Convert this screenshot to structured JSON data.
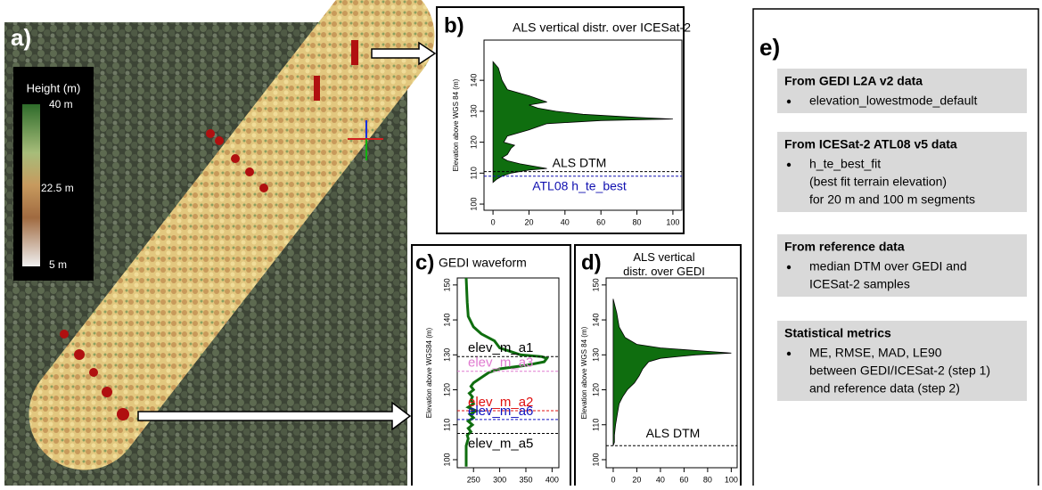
{
  "map": {
    "label": "a)",
    "legend_title": "Height (m)",
    "legend_ticks": [
      "40 m",
      "22.5 m",
      "5 m"
    ]
  },
  "chart_data": [
    {
      "type": "area",
      "panel_label": "b)",
      "title": "ALS vertical distr. over ICESat-2",
      "ylabel": "Elevation above WGS 84 (m)",
      "color": "#0f6e0f",
      "elevation": [
        146,
        144,
        140,
        137,
        135,
        133,
        132,
        131,
        130,
        129,
        128,
        127.5,
        127,
        126,
        125,
        124,
        122,
        120,
        119,
        118,
        116,
        115,
        114,
        113,
        112,
        111.5,
        111,
        110,
        109,
        108,
        107
      ],
      "values": [
        0,
        3,
        5,
        8,
        20,
        30,
        20,
        25,
        35,
        50,
        80,
        100,
        60,
        30,
        25,
        20,
        8,
        6,
        12,
        10,
        8,
        5,
        8,
        15,
        25,
        30,
        20,
        10,
        5,
        2,
        0
      ],
      "xlim": [
        -5,
        105
      ],
      "xticks": [
        0,
        20,
        40,
        60,
        80,
        100
      ],
      "ylim": [
        98,
        153
      ],
      "yticks": [
        100,
        110,
        120,
        130,
        140
      ],
      "reference_lines": [
        {
          "label": "ALS DTM",
          "value": 110.5,
          "color": "#000000"
        },
        {
          "label": "ATL08 h_te_best",
          "value": 109,
          "color": "#1010b0"
        }
      ]
    },
    {
      "type": "line",
      "panel_label": "c)",
      "title": "GEDI waveform",
      "ylabel": "Elevation above WGS84 (m)",
      "color": "#0f6e0f",
      "elevation": [
        152,
        145,
        141,
        138,
        136,
        134,
        132,
        131,
        130,
        129.5,
        129,
        128,
        127,
        126,
        125,
        124,
        123,
        122,
        121,
        120,
        119,
        118,
        117,
        116,
        115,
        114,
        113,
        112,
        111,
        110,
        109,
        108,
        107,
        106,
        104,
        100,
        98
      ],
      "values": [
        236,
        238,
        240,
        250,
        265,
        290,
        300,
        320,
        340,
        380,
        390,
        385,
        350,
        300,
        280,
        270,
        260,
        250,
        245,
        250,
        242,
        248,
        245,
        250,
        240,
        255,
        243,
        250,
        240,
        248,
        240,
        245,
        238,
        240,
        236,
        236,
        236
      ],
      "xlim": [
        219,
        413
      ],
      "xticks": [
        250,
        300,
        350,
        400
      ],
      "ylim": [
        97.7,
        152
      ],
      "yticks": [
        100,
        110,
        120,
        130,
        140,
        150
      ],
      "reference_lines": [
        {
          "label": "elev_m_a1",
          "value": 129.5,
          "color": "#000000"
        },
        {
          "label": "elev_m_a3",
          "value": 125.3,
          "color": "#e07ad0"
        },
        {
          "label": "elev_m_a2",
          "value": 114,
          "color": "#e01010"
        },
        {
          "label": "elev_m_a6",
          "value": 111.5,
          "color": "#1010c0"
        },
        {
          "label": "elev_m_a5",
          "value": 107.5,
          "color": "#000000"
        }
      ]
    },
    {
      "type": "area",
      "panel_label": "d)",
      "title": "ALS vertical distr. over GEDI",
      "ylabel": "Elevation above WGS 84 (m)",
      "color": "#0f6e0f",
      "elevation": [
        146,
        142,
        138,
        135,
        133,
        132,
        131,
        130.5,
        130,
        129,
        128,
        126,
        124,
        122,
        120,
        118,
        116,
        114,
        112,
        110,
        107,
        105,
        104
      ],
      "values": [
        0,
        3,
        5,
        10,
        20,
        40,
        80,
        100,
        70,
        40,
        30,
        25,
        22,
        18,
        12,
        8,
        5,
        4,
        3,
        2,
        1,
        1,
        0
      ],
      "xlim": [
        -6,
        105
      ],
      "xticks": [
        0,
        20,
        40,
        60,
        80,
        100
      ],
      "ylim": [
        97.7,
        152
      ],
      "yticks": [
        100,
        110,
        120,
        130,
        140,
        150
      ],
      "reference_lines": [
        {
          "label": "ALS DTM",
          "value": 104,
          "color": "#000000"
        }
      ]
    }
  ],
  "text_panel": {
    "label": "e)",
    "sections": [
      {
        "heading": "From GEDI L2A v2 data",
        "bullets": [
          [
            "elevation_lowestmode_default"
          ]
        ]
      },
      {
        "heading": "From ICESat-2 ATL08 v5 data",
        "bullets": [
          [
            "h_te_best_fit",
            "(best fit terrain elevation)",
            "for 20 m and 100 m segments"
          ]
        ]
      },
      {
        "heading": "From reference data",
        "bullets": [
          [
            "median DTM over GEDI and",
            "ICESat-2 samples"
          ]
        ]
      },
      {
        "heading": "Statistical metrics",
        "bullets": [
          [
            "ME, RMSE, MAD, LE90",
            "between GEDI/ICESat-2 (step 1)",
            "and reference data (step 2)"
          ]
        ]
      }
    ]
  }
}
